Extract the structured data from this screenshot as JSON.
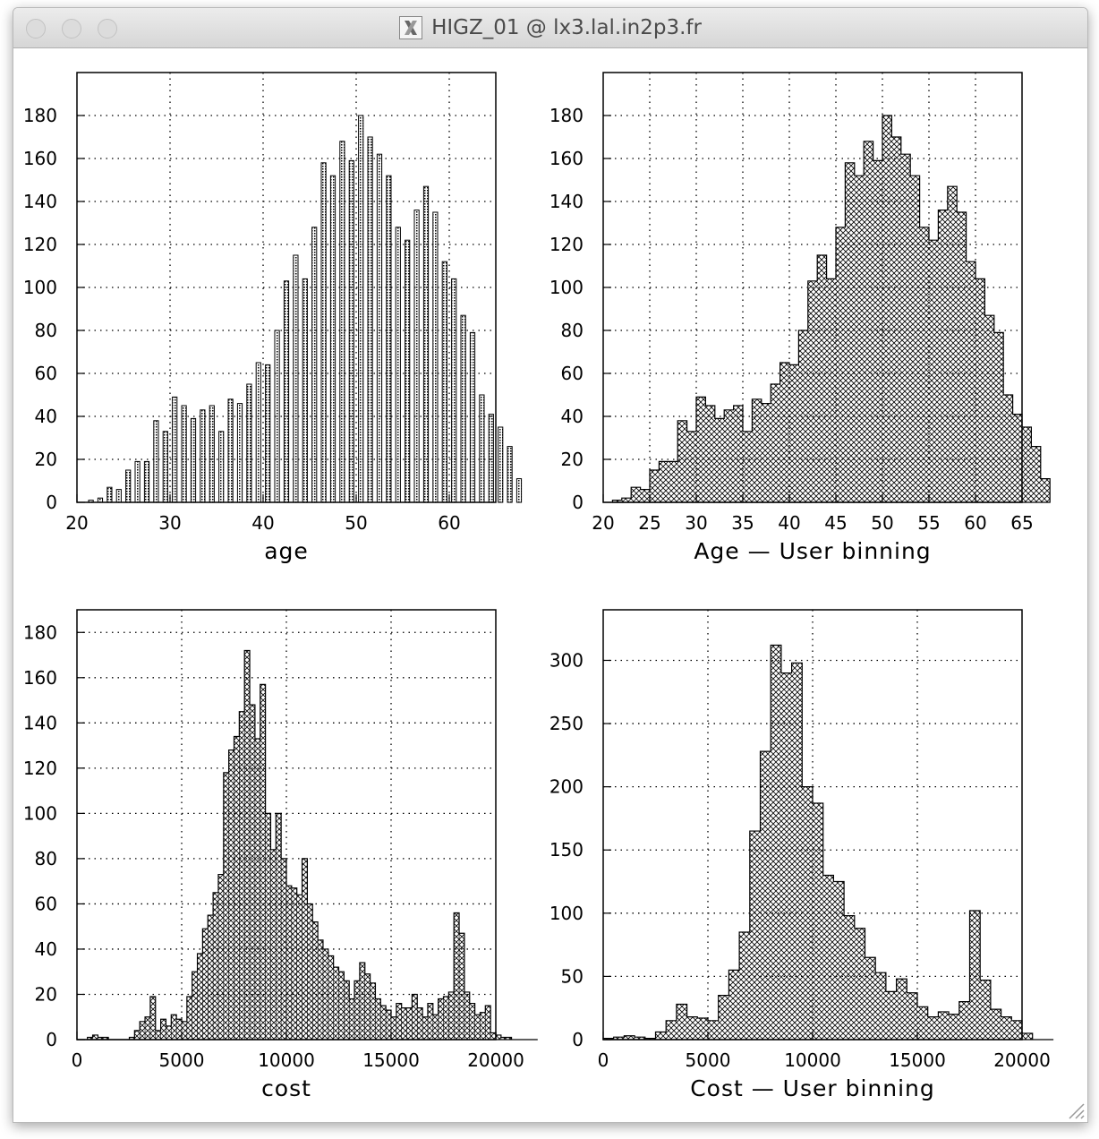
{
  "window": {
    "title": "HIGZ_01 @ lx3.lal.in2p3.fr",
    "icon": "x11-icon"
  },
  "chart_data": [
    {
      "type": "bar",
      "xlabel": "age",
      "xlim": [
        20,
        65
      ],
      "ylim": [
        0,
        200
      ],
      "xticks": [
        "20",
        "30",
        "40",
        "50",
        "60"
      ],
      "xtick_values": [
        20,
        30,
        40,
        50,
        60
      ],
      "yticks": [
        "0",
        "20",
        "40",
        "60",
        "80",
        "100",
        "120",
        "140",
        "160",
        "180"
      ],
      "ytick_values": [
        0,
        20,
        40,
        60,
        80,
        100,
        120,
        140,
        160,
        180
      ],
      "grid": true,
      "style": "bars",
      "bin_lo": 21,
      "bin_width": 1,
      "values": [
        1,
        2,
        7,
        6,
        15,
        19,
        19,
        38,
        33,
        49,
        45,
        39,
        43,
        45,
        33,
        48,
        46,
        55,
        65,
        64,
        80,
        103,
        115,
        104,
        128,
        158,
        152,
        168,
        159,
        180,
        170,
        162,
        152,
        128,
        122,
        136,
        147,
        135,
        112,
        104,
        87,
        79,
        50,
        41,
        35,
        26,
        11
      ]
    },
    {
      "type": "histogram",
      "xlabel": "Age — User binning",
      "xlim": [
        20,
        65
      ],
      "ylim": [
        0,
        200
      ],
      "xticks": [
        "20",
        "25",
        "30",
        "35",
        "40",
        "45",
        "50",
        "55",
        "60",
        "65"
      ],
      "xtick_values": [
        20,
        25,
        30,
        35,
        40,
        45,
        50,
        55,
        60,
        65
      ],
      "yticks": [
        "0",
        "20",
        "40",
        "60",
        "80",
        "100",
        "120",
        "140",
        "160",
        "180"
      ],
      "ytick_values": [
        0,
        20,
        40,
        60,
        80,
        100,
        120,
        140,
        160,
        180
      ],
      "grid": true,
      "style": "step-hatched",
      "bin_lo": 21,
      "bin_width": 1,
      "values": [
        1,
        2,
        7,
        6,
        15,
        19,
        19,
        38,
        33,
        49,
        45,
        39,
        43,
        45,
        33,
        48,
        46,
        55,
        65,
        64,
        80,
        103,
        115,
        104,
        128,
        158,
        152,
        168,
        159,
        180,
        170,
        162,
        152,
        128,
        122,
        136,
        147,
        135,
        112,
        104,
        87,
        79,
        50,
        41,
        35,
        26,
        11
      ]
    },
    {
      "type": "histogram",
      "xlabel": "cost",
      "xlim": [
        0,
        20000
      ],
      "ylim": [
        0,
        190
      ],
      "xticks": [
        "0",
        "5000",
        "10000",
        "15000",
        "20000"
      ],
      "xtick_values": [
        0,
        5000,
        10000,
        15000,
        20000
      ],
      "yticks": [
        "0",
        "20",
        "40",
        "60",
        "80",
        "100",
        "120",
        "140",
        "160",
        "180"
      ],
      "ytick_values": [
        0,
        20,
        40,
        60,
        80,
        100,
        120,
        140,
        160,
        180
      ],
      "grid": true,
      "style": "step-hatched-bars",
      "bin_lo": 0,
      "bin_width": 250,
      "values": [
        0,
        0,
        1,
        2,
        1,
        1,
        0,
        0,
        0,
        0,
        1,
        4,
        8,
        10,
        19,
        4,
        9,
        6,
        11,
        9,
        8,
        19,
        30,
        38,
        49,
        55,
        65,
        73,
        118,
        128,
        134,
        145,
        172,
        148,
        133,
        157,
        100,
        84,
        100,
        80,
        68,
        67,
        64,
        80,
        60,
        52,
        44,
        40,
        37,
        32,
        30,
        26,
        18,
        26,
        34,
        29,
        25,
        18,
        15,
        13,
        10,
        16,
        14,
        14,
        20,
        14,
        10,
        16,
        11,
        18,
        19,
        21,
        56,
        47,
        21,
        16,
        11,
        12,
        15,
        3,
        2,
        1,
        1,
        0,
        0,
        0,
        0,
        0
      ]
    },
    {
      "type": "histogram",
      "xlabel": "Cost — User binning",
      "xlim": [
        0,
        20000
      ],
      "ylim": [
        0,
        340
      ],
      "xticks": [
        "0",
        "5000",
        "10000",
        "15000",
        "20000"
      ],
      "xtick_values": [
        0,
        5000,
        10000,
        15000,
        20000
      ],
      "yticks": [
        "0",
        "50",
        "100",
        "150",
        "200",
        "250",
        "300"
      ],
      "ytick_values": [
        0,
        50,
        100,
        150,
        200,
        250,
        300
      ],
      "grid": true,
      "style": "step-hatched",
      "bin_lo": 0,
      "bin_width": 500,
      "values": [
        1,
        2,
        3,
        2,
        1,
        6,
        15,
        28,
        18,
        17,
        15,
        35,
        55,
        85,
        165,
        228,
        312,
        290,
        298,
        200,
        187,
        130,
        125,
        98,
        88,
        65,
        53,
        38,
        48,
        37,
        26,
        18,
        22,
        20,
        30,
        102,
        47,
        24,
        18,
        15,
        5,
        0,
        0
      ]
    }
  ]
}
